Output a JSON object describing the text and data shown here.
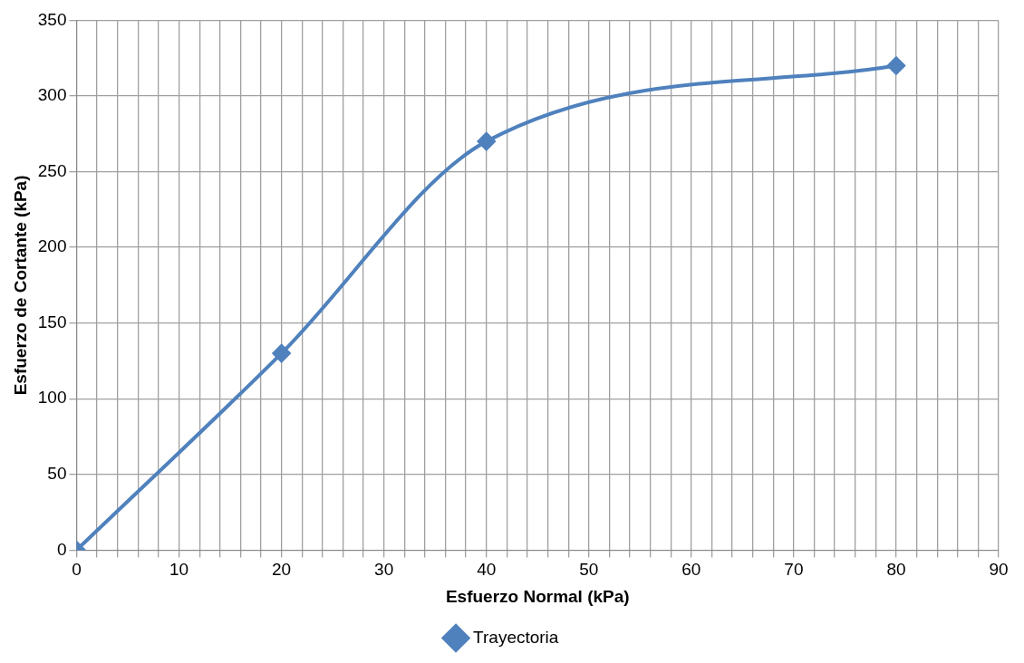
{
  "chart_data": {
    "type": "line",
    "xlabel": "Esfuerzo Normal (kPa)",
    "ylabel": "Esfuerzo de Cortante (kPa)",
    "x": [
      0,
      20,
      40,
      80
    ],
    "series": [
      {
        "name": "Trayectoria",
        "color": "#4f81bd",
        "values": [
          0,
          130,
          270,
          320
        ]
      }
    ],
    "xlim": [
      0,
      90
    ],
    "xticks": [
      0,
      {
        "value": 2,
        "label": null
      },
      {
        "value": 4,
        "label": null
      },
      {
        "value": 6,
        "label": null
      },
      {
        "value": 8,
        "label": null
      },
      10,
      {
        "value": 12,
        "label": null
      },
      {
        "value": 14,
        "label": null
      },
      {
        "value": 16,
        "label": null
      },
      {
        "value": 18,
        "label": null
      },
      20,
      {
        "value": 22,
        "label": null
      },
      {
        "value": 24,
        "label": null
      },
      {
        "value": 26,
        "label": null
      },
      {
        "value": 28,
        "label": null
      },
      30,
      {
        "value": 32,
        "label": null
      },
      {
        "value": 34,
        "label": null
      },
      {
        "value": 36,
        "label": null
      },
      {
        "value": 38,
        "label": null
      },
      40,
      {
        "value": 42,
        "label": null
      },
      {
        "value": 44,
        "label": null
      },
      {
        "value": 46,
        "label": null
      },
      {
        "value": 48,
        "label": null
      },
      50,
      {
        "value": 52,
        "label": null
      },
      {
        "value": 54,
        "label": null
      },
      {
        "value": 56,
        "label": null
      },
      {
        "value": 58,
        "label": null
      },
      60,
      {
        "value": 62,
        "label": null
      },
      {
        "value": 64,
        "label": null
      },
      {
        "value": 66,
        "label": null
      },
      {
        "value": 68,
        "label": null
      },
      70,
      {
        "value": 72,
        "label": null
      },
      {
        "value": 74,
        "label": null
      },
      {
        "value": 76,
        "label": null
      },
      {
        "value": 78,
        "label": null
      },
      80,
      {
        "value": 82,
        "label": null
      },
      {
        "value": 84,
        "label": null
      },
      {
        "value": 86,
        "label": null
      },
      {
        "value": 88,
        "label": null
      },
      90
    ],
    "ylim": [
      0,
      350
    ],
    "yticks": [
      0,
      50,
      100,
      150,
      200,
      250,
      300,
      350
    ],
    "grid": true,
    "legend": "bottom",
    "marker": "diamond",
    "line_style": "solid"
  }
}
